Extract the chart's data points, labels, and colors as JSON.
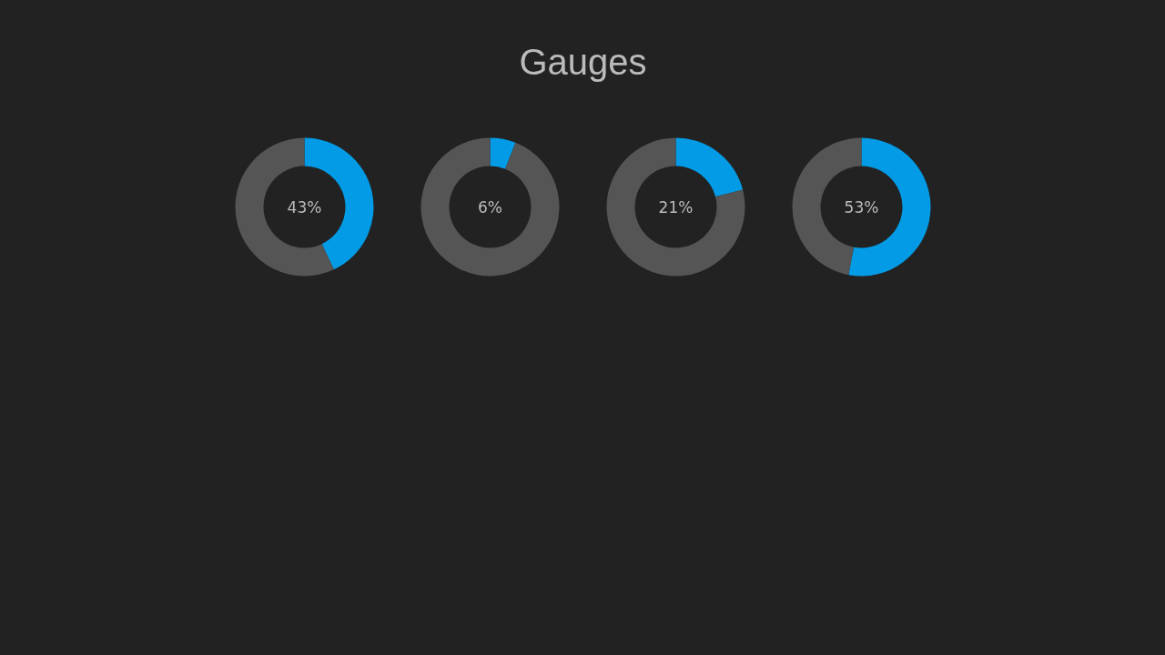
{
  "chart_data": [
    {
      "type": "donut",
      "title": "Gauges",
      "categories": [
        null,
        null
      ],
      "values": [
        43,
        57
      ],
      "colors": [
        "#039be5",
        "#555555"
      ],
      "annotations": [
        "43%"
      ]
    },
    {
      "type": "donut",
      "categories": [
        null,
        null
      ],
      "values": [
        6,
        94
      ],
      "colors": [
        "#039be5",
        "#555555"
      ],
      "annotations": [
        "6%"
      ]
    },
    {
      "type": "donut",
      "categories": [
        null,
        null
      ],
      "values": [
        21,
        79
      ],
      "colors": [
        "#039be5",
        "#555555"
      ],
      "annotations": [
        "21%"
      ]
    },
    {
      "type": "donut",
      "categories": [
        null,
        null
      ],
      "values": [
        53,
        47
      ],
      "colors": [
        "#039be5",
        "#555555"
      ],
      "annotations": [
        "53%"
      ]
    }
  ]
}
